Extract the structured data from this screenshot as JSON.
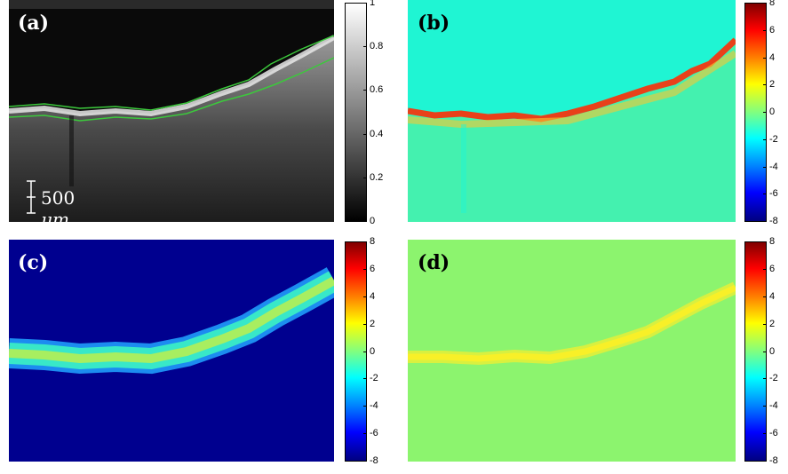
{
  "panels": [
    {
      "label": "(a)",
      "colorbar_ticks": [
        "1",
        "0.8",
        "0.6",
        "0.4",
        "0.2",
        "0"
      ],
      "colormap": "gray",
      "label_color": "#ffffff"
    },
    {
      "label": "(b)",
      "colorbar_ticks": [
        "8",
        "6",
        "4",
        "2",
        "0",
        "-2",
        "-4",
        "-6",
        "-8"
      ],
      "colormap": "jet",
      "label_color": "#000000"
    },
    {
      "label": "(c)",
      "colorbar_ticks": [
        "8",
        "6",
        "4",
        "2",
        "0",
        "-2",
        "-4",
        "-6",
        "-8"
      ],
      "colormap": "jet",
      "label_color": "#ffffff"
    },
    {
      "label": "(d)",
      "colorbar_ticks": [
        "8",
        "6",
        "4",
        "2",
        "0",
        "-2",
        "-4",
        "-6",
        "-8"
      ],
      "colormap": "jet",
      "label_color": "#000000"
    }
  ],
  "scale_bar": {
    "number": "500",
    "unit": "μm"
  },
  "colors": {
    "boundary": "#3cc83c",
    "b_background": "#1ff5d3",
    "c_background": "#00008f",
    "d_background": "#8cf46e"
  }
}
